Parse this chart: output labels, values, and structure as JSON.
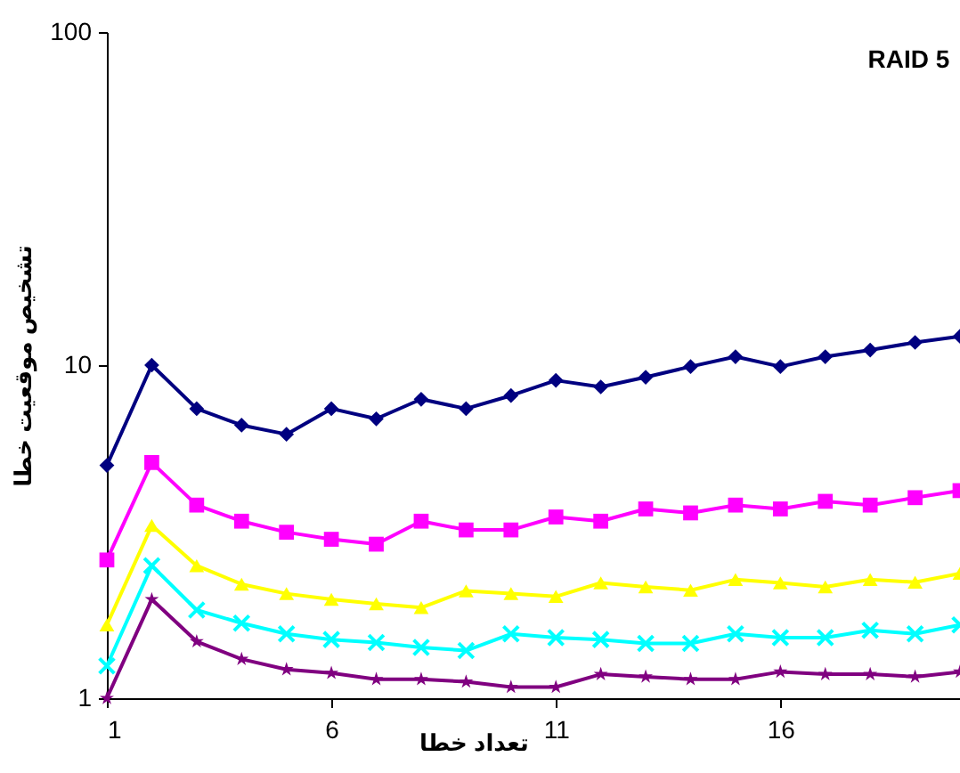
{
  "chart_data": {
    "type": "line",
    "title": "RAID 5",
    "xlabel": "تعداد خطا",
    "ylabel": "تشخیص موقعیت خطا",
    "x": [
      1,
      2,
      3,
      4,
      5,
      6,
      7,
      8,
      9,
      10,
      11,
      12,
      13,
      14,
      15,
      16,
      17,
      18,
      19,
      20
    ],
    "series": [
      {
        "color": "#000080",
        "marker": "diamond",
        "values": [
          5,
          10,
          7.4,
          6.6,
          6.2,
          7.4,
          6.9,
          7.9,
          7.4,
          8.1,
          9,
          8.6,
          9.2,
          9.9,
          10.6,
          9.9,
          10.6,
          11.1,
          11.7,
          12.2
        ]
      },
      {
        "color": "#ff00ff",
        "marker": "square",
        "values": [
          2.6,
          5.1,
          3.8,
          3.4,
          3.15,
          3,
          2.9,
          3.4,
          3.2,
          3.2,
          3.5,
          3.4,
          3.7,
          3.6,
          3.8,
          3.7,
          3.9,
          3.8,
          4,
          4.2
        ]
      },
      {
        "color": "#ffff00",
        "marker": "triangle",
        "values": [
          1.66,
          3.3,
          2.5,
          2.2,
          2.06,
          1.98,
          1.92,
          1.87,
          2.1,
          2.06,
          2.02,
          2.22,
          2.16,
          2.11,
          2.27,
          2.22,
          2.16,
          2.27,
          2.23,
          2.37
        ]
      },
      {
        "color": "#00ffff",
        "marker": "cross",
        "values": [
          1.25,
          2.5,
          1.84,
          1.68,
          1.56,
          1.5,
          1.47,
          1.42,
          1.39,
          1.56,
          1.52,
          1.5,
          1.46,
          1.46,
          1.56,
          1.52,
          1.52,
          1.6,
          1.56,
          1.66
        ]
      },
      {
        "color": "#800080",
        "marker": "star",
        "values": [
          1,
          1.98,
          1.48,
          1.31,
          1.22,
          1.19,
          1.14,
          1.14,
          1.12,
          1.08,
          1.08,
          1.18,
          1.16,
          1.14,
          1.14,
          1.2,
          1.18,
          1.18,
          1.16,
          1.2
        ]
      }
    ],
    "xlim": [
      1,
      20
    ],
    "xticks": [
      1,
      6,
      11,
      16
    ],
    "ylim": [
      1,
      100
    ],
    "yticks": [
      1,
      10,
      100
    ],
    "log": true,
    "grid": false
  }
}
